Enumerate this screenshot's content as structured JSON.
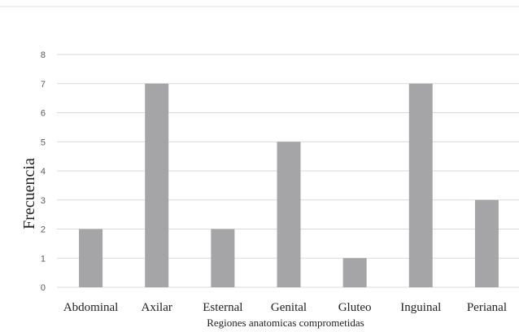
{
  "chart_data": {
    "type": "bar",
    "categories": [
      "Abdominal",
      "Axilar",
      "Esternal",
      "Genital",
      "Gluteo",
      "Inguinal",
      "Perianal"
    ],
    "values": [
      2,
      7,
      2,
      5,
      1,
      7,
      3
    ],
    "xlabel": "Regiones anatomicas comprometidas",
    "ylabel": "Frecuencia",
    "ylim": [
      0,
      8
    ],
    "yticks": [
      "0",
      "1",
      "2",
      "3",
      "4",
      "5",
      "6",
      "7",
      "8"
    ],
    "grid": true,
    "bar_color": "#a5a5a7",
    "grid_color": "#d9d9d9"
  }
}
